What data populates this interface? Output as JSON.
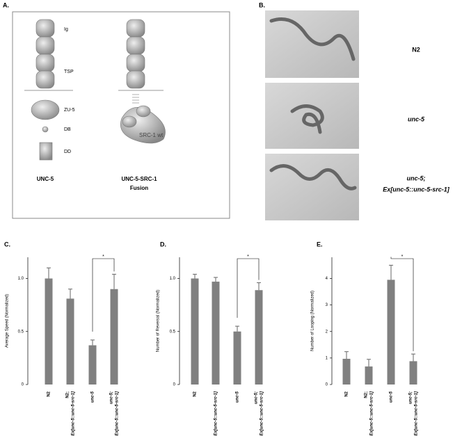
{
  "panel_a": {
    "label": "A.",
    "domains": [
      "Ig",
      "TSP",
      "ZU-5",
      "DB",
      "DD"
    ],
    "names": [
      "UNC-5",
      [
        "UNC-5-SRC-1",
        "Fusion"
      ]
    ],
    "src_label": "SRC-1 wt"
  },
  "panel_b": {
    "label": "B.",
    "rows": [
      [
        "N2"
      ],
      [
        "unc-5"
      ],
      [
        "unc-5;",
        "Ex[unc-5::unc-5-src-1]"
      ]
    ]
  },
  "chart_data": [
    {
      "type": "bar",
      "label": "C.",
      "y_label": "Average Speed (Normalized)",
      "categories": [
        [
          "N2"
        ],
        [
          "N2;",
          "Ex[unc-5::unc-5-src-1]"
        ],
        [
          "unc-5"
        ],
        [
          "unc-5;",
          "Ex[unc-5::unc-5-src-1]"
        ]
      ],
      "values": [
        1.0,
        0.81,
        0.37,
        0.9
      ],
      "errors": [
        0.1,
        0.09,
        0.05,
        0.14
      ],
      "color": "#808080",
      "ylim": [
        0,
        1.2
      ],
      "yticks": [
        0,
        0.5,
        {
          "value": 1,
          "label": "1.0"
        }
      ],
      "annotation": "*"
    },
    {
      "type": "bar",
      "label": "D.",
      "y_label": "Number of Reversal (Normalized)",
      "categories": [
        [
          "N2"
        ],
        [
          "Ex[unc-5::unc-5-src-1]"
        ],
        [
          "unc-5"
        ],
        [
          "unc-5;",
          "Ex[unc-5::unc-5-src-1]"
        ]
      ],
      "values": [
        1.0,
        0.97,
        0.5,
        0.89
      ],
      "errors": [
        0.04,
        0.04,
        0.05,
        0.07
      ],
      "color": "#808080",
      "ylim": [
        0,
        1.2
      ],
      "yticks": [
        0,
        0.5,
        {
          "value": 1,
          "label": "1.0"
        }
      ],
      "annotation": "*"
    },
    {
      "type": "bar",
      "label": "E.",
      "y_label": "Number of Looping (Normalized)",
      "categories": [
        [
          "N2"
        ],
        [
          "N2;",
          "Ex[unc-5::unc-5-src-1]"
        ],
        [
          "unc-5"
        ],
        [
          "unc-5;",
          "Ex[unc-5::unc-5-src-1]"
        ]
      ],
      "values": [
        0.97,
        0.68,
        3.95,
        0.88
      ],
      "errors": [
        0.27,
        0.27,
        0.55,
        0.27
      ],
      "color": "#808080",
      "ylim": [
        0,
        4.8
      ],
      "yticks": [
        0,
        1,
        2,
        3,
        4
      ],
      "annotation": "*"
    }
  ]
}
